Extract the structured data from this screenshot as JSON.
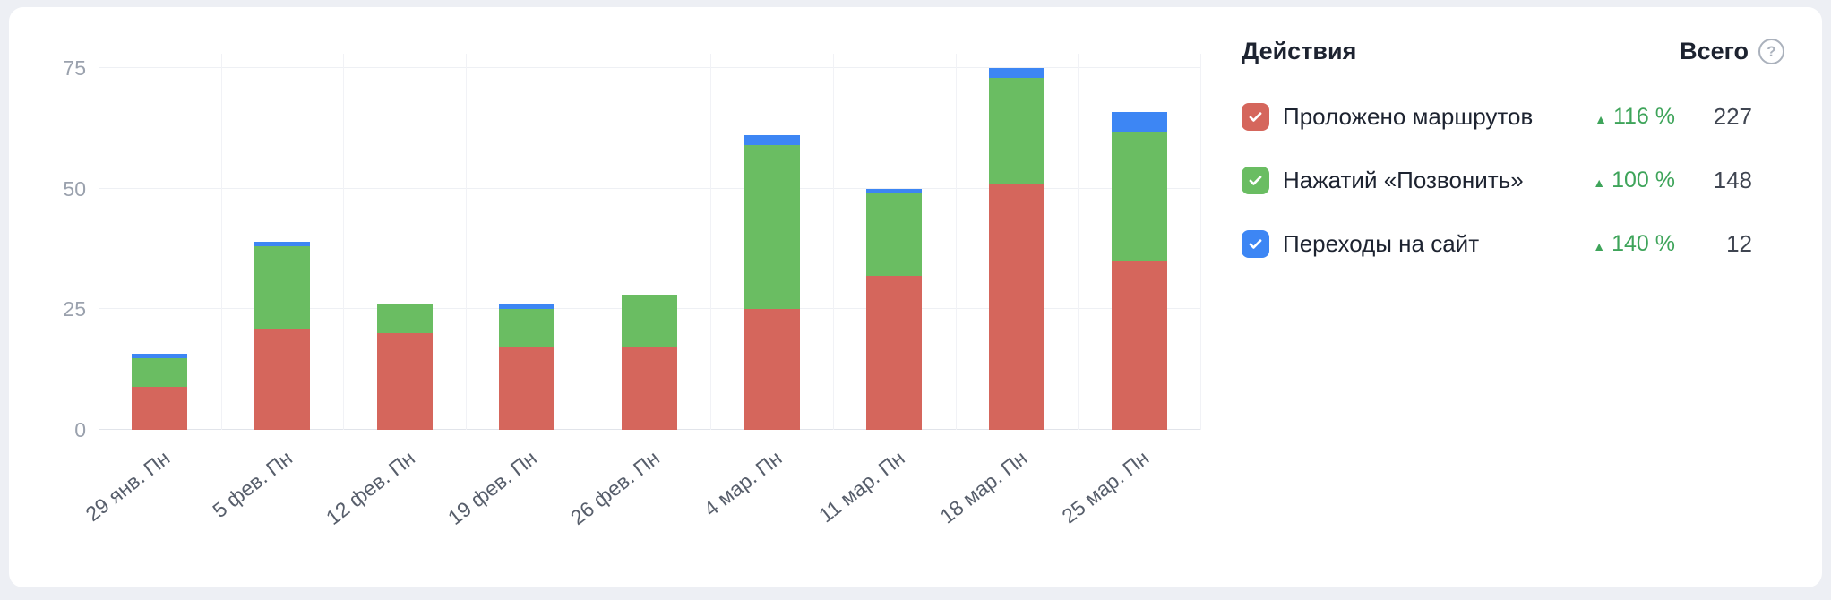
{
  "chart_data": {
    "type": "bar",
    "stacked": true,
    "title": "",
    "categories": [
      "29 янв. Пн",
      "5 фев. Пн",
      "12 фев. Пн",
      "19 фев. Пн",
      "26 фев. Пн",
      "4 мар. Пн",
      "11 мар. Пн",
      "18 мар. Пн",
      "25 мар. Пн"
    ],
    "series": [
      {
        "name": "Проложено маршрутов",
        "color": "#d5665c",
        "values": [
          9,
          21,
          20,
          17,
          17,
          25,
          32,
          51,
          35
        ],
        "total": 227
      },
      {
        "name": "Нажатий «Позвонить»",
        "color": "#6abd62",
        "values": [
          6,
          17,
          6,
          8,
          11,
          34,
          17,
          22,
          27
        ],
        "total": 148
      },
      {
        "name": "Переходы на сайт",
        "color": "#3d86f4",
        "values": [
          1,
          1,
          0,
          1,
          0,
          2,
          1,
          2,
          4
        ],
        "total": 12
      }
    ],
    "xlabel": "",
    "ylabel": "",
    "yticks": [
      0,
      25,
      50,
      75
    ],
    "ylim": [
      0,
      78
    ],
    "grid": true,
    "legend_position": "right"
  },
  "legend": {
    "title": "Действия",
    "total_label": "Всего",
    "help_icon": "?",
    "rows": [
      {
        "label": "Проложено маршрутов",
        "color": "#d5665c",
        "checked": true,
        "trend": "up",
        "delta": "116 %",
        "total": "227"
      },
      {
        "label": "Нажатий «Позвонить»",
        "color": "#6abd62",
        "checked": true,
        "trend": "up",
        "delta": "100 %",
        "total": "148"
      },
      {
        "label": "Переходы на сайт",
        "color": "#3d86f4",
        "checked": true,
        "trend": "up",
        "delta": "140 %",
        "total": "12"
      }
    ]
  },
  "colors": {
    "page_background": "#edeff4",
    "card_background": "#ffffff",
    "positive": "#3ea45a",
    "axis_label": "#9aa1ad",
    "x_label": "#575e6b",
    "gridline": "#eef0f4"
  }
}
